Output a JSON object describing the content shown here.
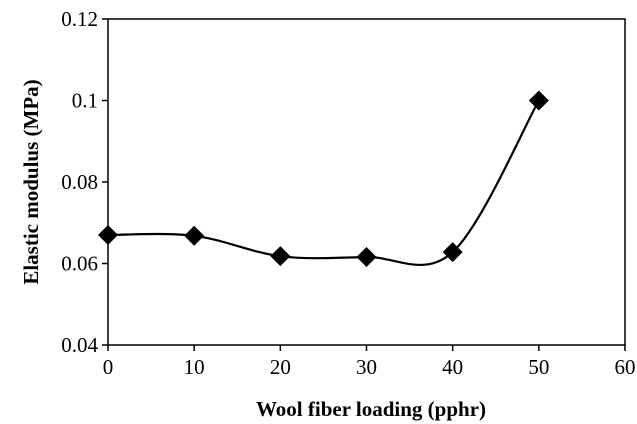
{
  "chart_data": {
    "type": "line",
    "title": "",
    "xlabel": "Wool fiber loading (pphr)",
    "ylabel": "Elastic modulus (MPa)",
    "xlim": [
      0,
      60
    ],
    "ylim": [
      0.04,
      0.12
    ],
    "xticks": [
      0,
      10,
      20,
      30,
      40,
      50,
      60
    ],
    "yticks": [
      "0.04",
      "0.06",
      "0.08",
      "0.1",
      "0.12"
    ],
    "grid": false,
    "smooth": true,
    "marker": "diamond",
    "series": [
      {
        "x": [
          0,
          10,
          20,
          30,
          40,
          50
        ],
        "y": [
          0.067,
          0.0668,
          0.0618,
          0.0616,
          0.0628,
          0.1
        ]
      }
    ]
  }
}
